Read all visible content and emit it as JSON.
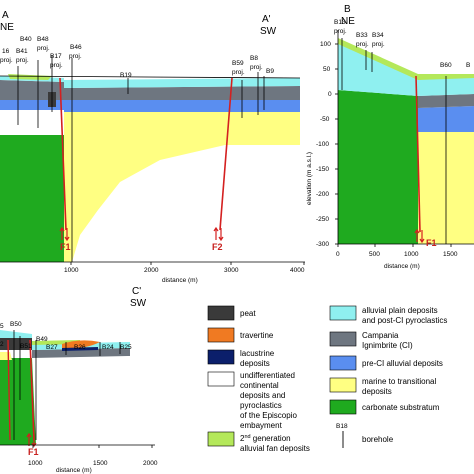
{
  "colors": {
    "peat": "#3a3a3a",
    "travertine": "#f07a22",
    "lacustrine": "#0b1f6b",
    "continental": "#ffffff",
    "alluvial_fan": "#b4e85a",
    "alluvial_plain": "#8ff0f0",
    "campania_ignimbrite": "#6e7680",
    "pre_ci_alluvial": "#5a8ef0",
    "marine": "#ffff82",
    "carbonate": "#1faa1f",
    "fault": "#d42020",
    "borehole": "#000000"
  },
  "panel_a": {
    "end_left_letter": "A",
    "end_left_dir": "NE",
    "end_right_letter": "A'",
    "end_right_dir": "SW",
    "x_axis_label": "distance (m)",
    "x_ticks": [
      "1000",
      "2000",
      "3000",
      "4000"
    ],
    "boreholes": [
      "16",
      "proj.",
      "B40",
      "B41",
      "proj.",
      "B48",
      "proj.",
      "B17",
      "proj.",
      "B46",
      "proj.",
      "B19",
      "B59",
      "proj.",
      "B8",
      "proj.",
      "B9"
    ],
    "faults": [
      "F1",
      "F2"
    ]
  },
  "panel_b": {
    "end_letter": "B",
    "end_dir": "NE",
    "y_axis_label": "elevation (m a.s.l.)",
    "y_ticks": [
      "100",
      "50",
      "0",
      "-50",
      "-100",
      "-150",
      "-200",
      "-250",
      "-300"
    ],
    "x_ticks": [
      "0",
      "500",
      "1000",
      "1500"
    ],
    "x_axis_label": "distance (m)",
    "boreholes": [
      "B13",
      "proj.",
      "B33",
      "proj.",
      "B34",
      "proj.",
      "B60",
      "B"
    ],
    "fault": "F1"
  },
  "panel_c": {
    "end_letter": "C'",
    "end_dir": "SW",
    "x_axis_label": "distance (m)",
    "x_ticks": [
      "1000",
      "1500",
      "2000"
    ],
    "boreholes": [
      "B50",
      "B51",
      "B49",
      "B27",
      "B26",
      "B24",
      "B25",
      "5",
      "2"
    ],
    "fault": "F1"
  },
  "legend": {
    "items_left": [
      {
        "key": "peat",
        "label": "peat"
      },
      {
        "key": "travertine",
        "label": "travertine"
      },
      {
        "key": "lacustrine",
        "label": "lacustrine deposits"
      },
      {
        "key": "continental",
        "label": "undifferentiated continental deposits and pyroclastics of the Episcopio embayment"
      },
      {
        "key": "alluvial_fan",
        "label": "2nd generation alluvial fan deposits"
      }
    ],
    "items_right": [
      {
        "key": "alluvial_plain",
        "label": "alluvial plain deposits and post-CI pyroclastics"
      },
      {
        "key": "campania_ignimbrite",
        "label": "Campania Ignimbrite (CI)"
      },
      {
        "key": "pre_ci_alluvial",
        "label": "pre-CI alluvial deposits"
      },
      {
        "key": "marine",
        "label": "marine to transitional deposits"
      },
      {
        "key": "carbonate",
        "label": "carbonate substratum"
      }
    ],
    "borehole_label": "borehole",
    "borehole_id": "B18",
    "legend_lines": {
      "lacustrine_1": "lacustrine",
      "lacustrine_2": "deposits",
      "cont_1": "undifferentiated",
      "cont_2": "continental",
      "cont_3": "deposits and",
      "cont_4": "pyroclastics",
      "cont_5": "of the Episcopio",
      "cont_6": "embayment",
      "fan_1": "2",
      "fan_sup": "nd",
      "fan_1b": " generation",
      "fan_2": "alluvial fan deposits",
      "plain_1": "alluvial plain deposits",
      "plain_2": "and post-CI pyroclastics",
      "ci_1": "Campania",
      "ci_2": "Ignimbrite (CI)",
      "marine_1": "marine to transitional",
      "marine_2": "deposits"
    }
  }
}
